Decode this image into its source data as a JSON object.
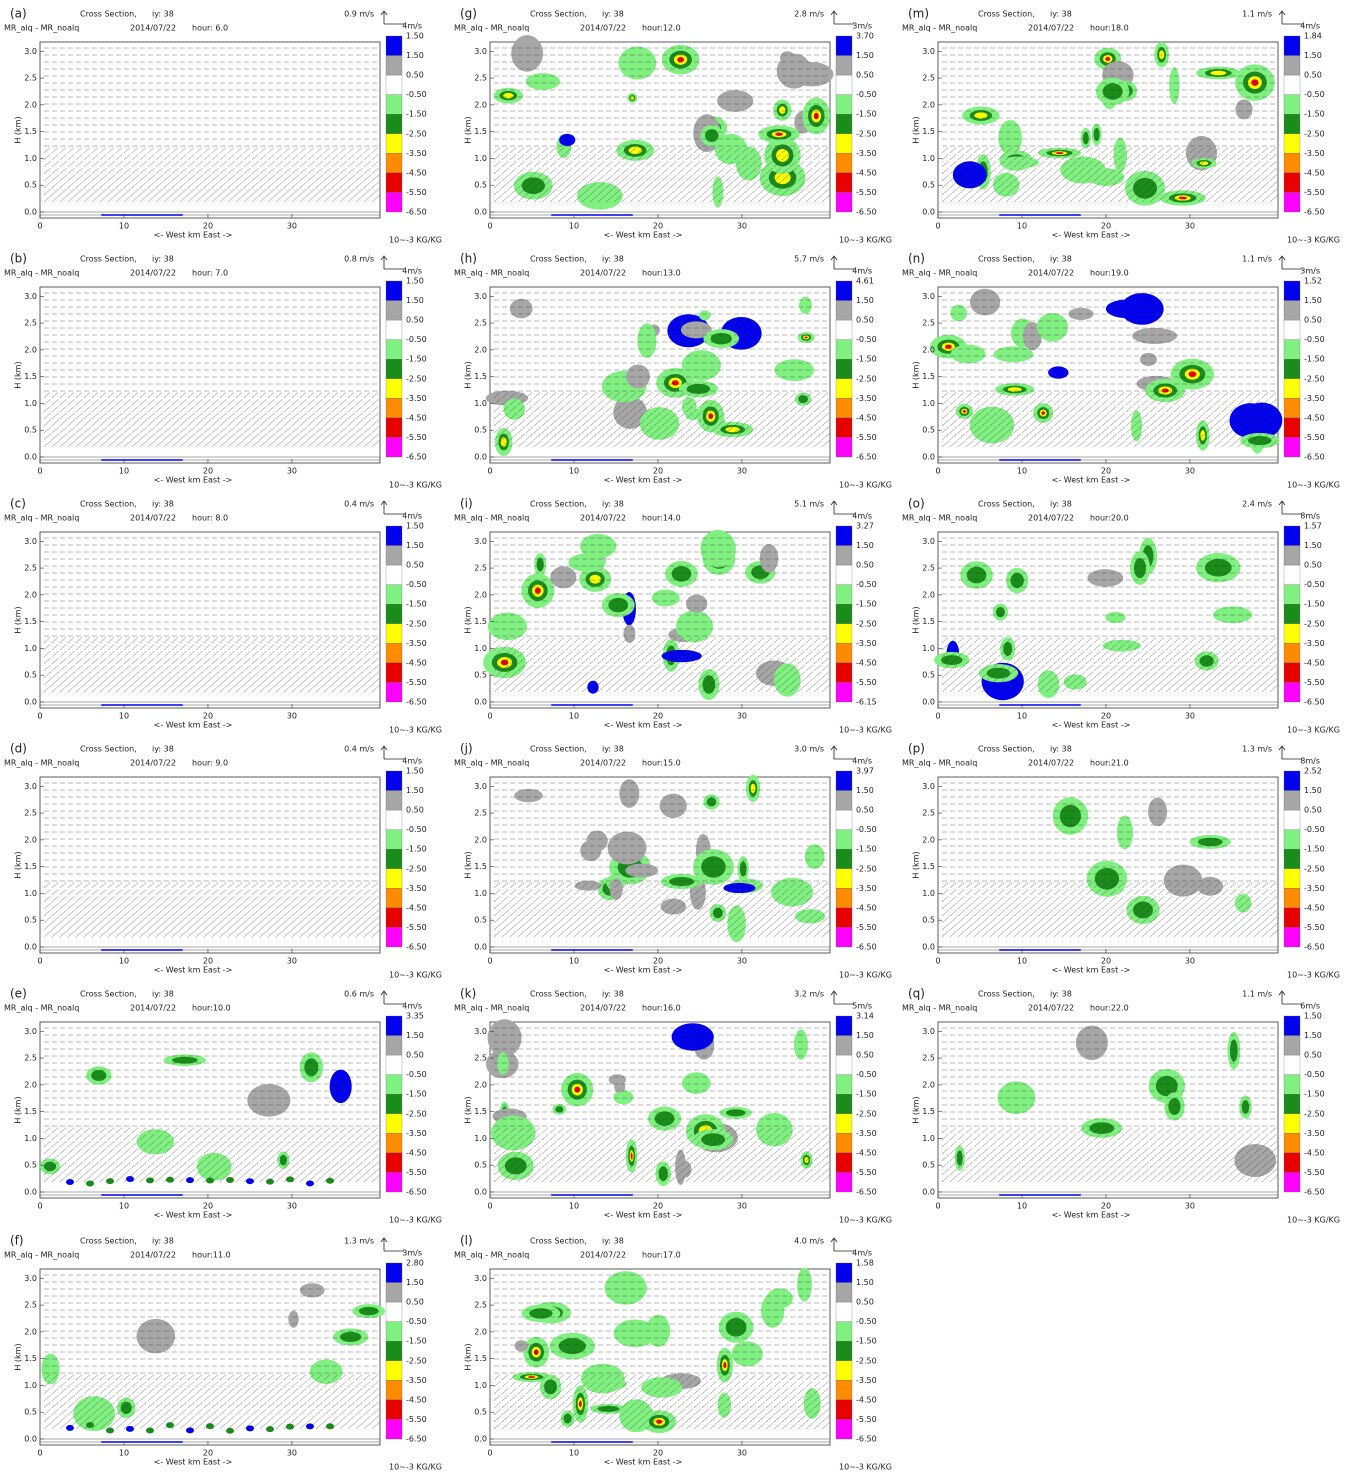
{
  "shared": {
    "title": "Cross Section,",
    "iy": "iy: 38",
    "var": "MR_alq - MR_noalq",
    "date": "2014/07/22",
    "y_label": "H (km)",
    "y_ticks": [
      "0.0",
      "0.5",
      "1.0",
      "1.5",
      "2.0",
      "2.5",
      "3.0"
    ],
    "x_ticks": [
      "0",
      "10",
      "20",
      "30"
    ],
    "x_label": "<- West    km    East ->",
    "unit": "10~-3 KG/KG",
    "colorbar_mid": [
      "1.50",
      "0.50",
      "-0.50",
      "-1.50",
      "-2.50",
      "-3.50",
      "-4.50",
      "-5.50"
    ],
    "colorbar_colors": [
      "#0000ee",
      "#a6a6a6",
      "#ffffff",
      "#80f080",
      "#1a8c1a",
      "#ffff00",
      "#ff8c00",
      "#e80000",
      "#ff00ff"
    ]
  },
  "panels": [
    {
      "label": "(a)",
      "ref_speed": "0.9 m/s",
      "ref_scale": "4m/s",
      "hour": "hour: 6.0",
      "cbar_max": "1.50",
      "cbar_min": "-6.50"
    },
    {
      "label": "(b)",
      "ref_speed": "0.8 m/s",
      "ref_scale": "4m/s",
      "hour": "hour: 7.0",
      "cbar_max": "1.50",
      "cbar_min": "-6.50"
    },
    {
      "label": "(c)",
      "ref_speed": "0.4 m/s",
      "ref_scale": "4m/s",
      "hour": "hour: 8.0",
      "cbar_max": "1.50",
      "cbar_min": "-6.50"
    },
    {
      "label": "(d)",
      "ref_speed": "0.4 m/s",
      "ref_scale": "4m/s",
      "hour": "hour: 9.0",
      "cbar_max": "1.50",
      "cbar_min": "-6.50"
    },
    {
      "label": "(e)",
      "ref_speed": "0.6 m/s",
      "ref_scale": "4m/s",
      "hour": "hour:10.0",
      "cbar_max": "3.35",
      "cbar_min": "-6.50"
    },
    {
      "label": "(f)",
      "ref_speed": "1.3 m/s",
      "ref_scale": "3m/s",
      "hour": "hour:11.0",
      "cbar_max": "2.80",
      "cbar_min": "-6.50"
    },
    {
      "label": "(g)",
      "ref_speed": "2.8 m/s",
      "ref_scale": "3m/s",
      "hour": "hour:12.0",
      "cbar_max": "3.70",
      "cbar_min": "-6.50"
    },
    {
      "label": "(h)",
      "ref_speed": "5.7 m/s",
      "ref_scale": "4m/s",
      "hour": "hour:13.0",
      "cbar_max": "4.61",
      "cbar_min": "-6.50"
    },
    {
      "label": "(i)",
      "ref_speed": "5.1 m/s",
      "ref_scale": "4m/s",
      "hour": "hour:14.0",
      "cbar_max": "3.27",
      "cbar_min": "-6.15"
    },
    {
      "label": "(j)",
      "ref_speed": "3.0 m/s",
      "ref_scale": "4m/s",
      "hour": "hour:15.0",
      "cbar_max": "3.97",
      "cbar_min": "-6.50"
    },
    {
      "label": "(k)",
      "ref_speed": "3.2 m/s",
      "ref_scale": "5m/s",
      "hour": "hour:16.0",
      "cbar_max": "3.14",
      "cbar_min": "-6.50"
    },
    {
      "label": "(l)",
      "ref_speed": "4.0 m/s",
      "ref_scale": "4m/s",
      "hour": "hour:17.0",
      "cbar_max": "1.58",
      "cbar_min": "-6.50"
    },
    {
      "label": "(m)",
      "ref_speed": "1.1 m/s",
      "ref_scale": "4m/s",
      "hour": "hour:18.0",
      "cbar_max": "1.84",
      "cbar_min": "-6.50"
    },
    {
      "label": "(n)",
      "ref_speed": "1.1 m/s",
      "ref_scale": "3m/s",
      "hour": "hour:19.0",
      "cbar_max": "1.52",
      "cbar_min": "-6.50"
    },
    {
      "label": "(o)",
      "ref_speed": "2.4 m/s",
      "ref_scale": "8m/s",
      "hour": "hour:20.0",
      "cbar_max": "1.57",
      "cbar_min": "-6.50"
    },
    {
      "label": "(p)",
      "ref_speed": "1.3 m/s",
      "ref_scale": "8m/s",
      "hour": "hour:21.0",
      "cbar_max": "2.52",
      "cbar_min": "-6.50"
    },
    {
      "label": "(q)",
      "ref_speed": "1.1 m/s",
      "ref_scale": "6m/s",
      "hour": "hour:22.0",
      "cbar_max": "1.50",
      "cbar_min": "-6.50"
    }
  ]
}
